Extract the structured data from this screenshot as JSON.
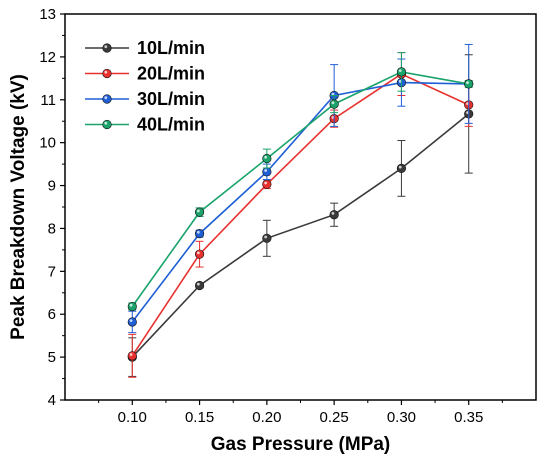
{
  "chart_data": {
    "type": "line",
    "title": "",
    "xlabel": "Gas Pressure (MPa)",
    "ylabel": "Peak Breakdown Voltage (kV)",
    "xlim": [
      0.05,
      0.4
    ],
    "ylim": [
      4,
      13
    ],
    "x_ticks": [
      "0.10",
      "0.15",
      "0.20",
      "0.25",
      "0.30",
      "0.35"
    ],
    "y_ticks": [
      "4",
      "5",
      "6",
      "7",
      "8",
      "9",
      "10",
      "11",
      "12",
      "13"
    ],
    "x": [
      0.1,
      0.15,
      0.2,
      0.25,
      0.3,
      0.35
    ],
    "legend_position": "top-left",
    "grid": false,
    "series": [
      {
        "name": "10L/min",
        "color": "#3a3a3a",
        "values": [
          5.0,
          6.67,
          7.77,
          8.32,
          9.4,
          10.67
        ],
        "errors": [
          0.45,
          0.05,
          0.42,
          0.27,
          0.65,
          1.38
        ]
      },
      {
        "name": "20L/min",
        "color": "#e8312e",
        "values": [
          5.03,
          7.4,
          9.03,
          10.56,
          11.6,
          10.88
        ],
        "errors": [
          0.5,
          0.3,
          0.1,
          0.2,
          0.5,
          0.5
        ]
      },
      {
        "name": "30L/min",
        "color": "#1e5fd6",
        "values": [
          5.82,
          7.88,
          9.32,
          11.1,
          11.4,
          11.37
        ],
        "errors": [
          0.25,
          0.08,
          0.18,
          0.72,
          0.55,
          0.92
        ]
      },
      {
        "name": "40L/min",
        "color": "#1aa36a",
        "values": [
          6.18,
          8.38,
          9.63,
          10.9,
          11.65,
          11.37
        ],
        "errors": [
          0.08,
          0.1,
          0.22,
          0.2,
          0.45,
          0.08
        ]
      }
    ]
  }
}
